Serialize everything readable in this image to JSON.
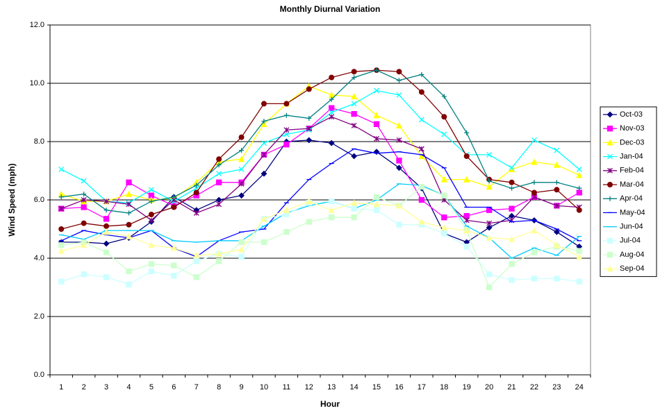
{
  "chart_data": {
    "type": "line",
    "title": "Monthly Diurnal Variation",
    "x_label": "Hour",
    "y_label": "Wind Speed (mph)",
    "categories": [
      1,
      2,
      3,
      4,
      5,
      6,
      7,
      8,
      9,
      10,
      11,
      12,
      13,
      14,
      15,
      16,
      17,
      18,
      19,
      20,
      21,
      22,
      23,
      24
    ],
    "ylim": [
      0,
      12
    ],
    "yticks": [
      {
        "value": 0,
        "label": "0.0"
      },
      {
        "value": 2,
        "label": "2.0"
      },
      {
        "value": 4,
        "label": "4.0"
      },
      {
        "value": 6,
        "label": "6.0"
      },
      {
        "value": 8,
        "label": "8.0"
      },
      {
        "value": 10,
        "label": "10.0"
      },
      {
        "value": 12,
        "label": "12.0"
      }
    ],
    "grid": true,
    "legend": "right",
    "series": [
      {
        "name": "Oct-03",
        "color": "#000080",
        "marker": "diamond",
        "values": [
          4.55,
          4.55,
          4.5,
          4.7,
          5.25,
          6.1,
          5.65,
          6.0,
          6.15,
          6.9,
          8.0,
          8.05,
          7.95,
          7.5,
          7.65,
          7.1,
          6.4,
          4.85,
          4.55,
          5.05,
          5.45,
          5.3,
          4.9,
          4.4
        ]
      },
      {
        "name": "Nov-03",
        "color": "#ff00ff",
        "marker": "square",
        "values": [
          5.7,
          5.75,
          5.35,
          6.6,
          6.15,
          5.8,
          6.15,
          6.6,
          6.6,
          7.55,
          7.9,
          8.45,
          9.15,
          8.95,
          8.6,
          7.35,
          6.0,
          5.4,
          5.45,
          5.65,
          5.7,
          6.1,
          5.8,
          6.25
        ]
      },
      {
        "name": "Dec-03",
        "color": "#ffff00",
        "marker": "triangle",
        "values": [
          6.2,
          5.95,
          5.95,
          6.2,
          6.0,
          6.05,
          6.6,
          7.3,
          7.4,
          8.6,
          9.3,
          9.9,
          9.6,
          9.55,
          8.9,
          8.55,
          7.5,
          6.7,
          6.7,
          6.45,
          7.05,
          7.3,
          7.2,
          6.85
        ]
      },
      {
        "name": "Jan-04",
        "color": "#00ffff",
        "marker": "x",
        "values": [
          7.05,
          6.65,
          5.95,
          5.9,
          6.35,
          5.95,
          6.4,
          6.9,
          7.05,
          7.95,
          8.25,
          8.4,
          9.0,
          9.3,
          9.75,
          9.6,
          8.75,
          8.25,
          7.55,
          7.55,
          7.1,
          8.05,
          7.7,
          7.05
        ]
      },
      {
        "name": "Feb-04",
        "color": "#800080",
        "marker": "star",
        "values": [
          5.7,
          6.0,
          5.95,
          5.85,
          5.3,
          6.0,
          5.55,
          5.85,
          6.55,
          7.55,
          8.4,
          8.45,
          8.85,
          8.55,
          8.1,
          8.05,
          7.75,
          6.0,
          5.3,
          5.2,
          5.3,
          6.1,
          5.8,
          5.75
        ]
      },
      {
        "name": "Mar-04",
        "color": "#800000",
        "marker": "circle",
        "values": [
          5.0,
          5.2,
          5.1,
          5.15,
          5.5,
          5.75,
          6.25,
          7.4,
          8.15,
          9.3,
          9.3,
          9.8,
          10.2,
          10.4,
          10.45,
          10.4,
          9.7,
          8.85,
          7.5,
          6.7,
          6.6,
          6.25,
          6.35,
          5.65
        ]
      },
      {
        "name": "Apr-04",
        "color": "#008080",
        "marker": "plus",
        "values": [
          6.1,
          6.2,
          5.65,
          5.55,
          5.95,
          6.1,
          6.5,
          7.2,
          7.7,
          8.7,
          8.9,
          8.8,
          9.45,
          10.2,
          10.45,
          10.1,
          10.3,
          9.55,
          8.3,
          6.65,
          6.4,
          6.6,
          6.6,
          6.4
        ]
      },
      {
        "name": "May-04",
        "color": "#0000ff",
        "marker": "dash",
        "values": [
          4.6,
          4.95,
          4.8,
          4.7,
          4.95,
          4.35,
          4.05,
          4.6,
          4.9,
          5.0,
          5.9,
          6.7,
          7.25,
          7.75,
          7.6,
          7.65,
          7.55,
          7.1,
          5.75,
          5.75,
          5.25,
          5.3,
          5.0,
          4.6
        ]
      },
      {
        "name": "Jun-04",
        "color": "#00ccff",
        "marker": "dash",
        "values": [
          4.8,
          4.65,
          4.95,
          4.95,
          4.95,
          4.6,
          4.55,
          4.6,
          4.6,
          5.1,
          5.55,
          5.8,
          5.95,
          5.7,
          6.0,
          6.55,
          6.5,
          6.15,
          5.1,
          4.7,
          4.0,
          4.35,
          4.1,
          4.75
        ]
      },
      {
        "name": "Jul-04",
        "color": "#ccffff",
        "marker": "square",
        "values": [
          3.2,
          3.45,
          3.35,
          3.1,
          3.55,
          3.4,
          3.9,
          4.15,
          4.05,
          5.35,
          5.5,
          5.9,
          5.95,
          5.7,
          5.65,
          5.15,
          5.15,
          4.85,
          4.4,
          3.45,
          3.25,
          3.3,
          3.3,
          3.2
        ]
      },
      {
        "name": "Aug-04",
        "color": "#ccffcc",
        "marker": "square",
        "values": [
          4.45,
          4.55,
          4.2,
          3.55,
          3.8,
          3.75,
          3.35,
          3.9,
          4.55,
          4.55,
          4.9,
          5.25,
          5.4,
          5.4,
          6.1,
          5.8,
          6.45,
          6.15,
          4.95,
          3.0,
          3.8,
          4.2,
          4.4,
          4.25
        ]
      },
      {
        "name": "Sep-04",
        "color": "#ffff99",
        "marker": "triangle",
        "values": [
          4.25,
          4.45,
          4.9,
          4.75,
          4.45,
          4.35,
          4.1,
          4.15,
          4.3,
          5.35,
          5.65,
          5.95,
          5.65,
          5.9,
          5.85,
          5.8,
          5.25,
          5.05,
          4.95,
          4.7,
          4.65,
          4.95,
          4.45,
          4.05
        ]
      }
    ]
  }
}
